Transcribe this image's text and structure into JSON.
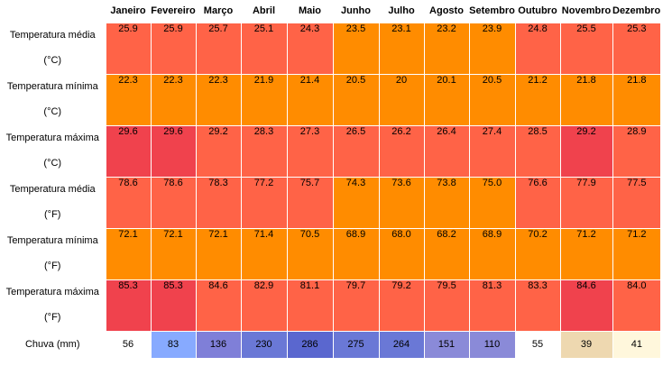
{
  "chart_data": {
    "type": "table",
    "columns": [
      "Janeiro",
      "Fevereiro",
      "Março",
      "Abril",
      "Maio",
      "Junho",
      "Julho",
      "Agosto",
      "Setembro",
      "Outubro",
      "Novembro",
      "Dezembro"
    ],
    "rows": [
      {
        "label": [
          "Temperatura média",
          "(°C)"
        ],
        "values": [
          "25.9",
          "25.9",
          "25.7",
          "25.1",
          "24.3",
          "23.5",
          "23.1",
          "23.2",
          "23.9",
          "24.8",
          "25.5",
          "25.3"
        ],
        "colors": [
          "#ff6347",
          "#ff6347",
          "#ff6347",
          "#ff6347",
          "#ff6347",
          "#ff8c00",
          "#ff8c00",
          "#ff8c00",
          "#ff8c00",
          "#ff6347",
          "#ff6347",
          "#ff6347"
        ]
      },
      {
        "label": [
          "Temperatura mínima",
          "(°C)"
        ],
        "values": [
          "22.3",
          "22.3",
          "22.3",
          "21.9",
          "21.4",
          "20.5",
          "20",
          "20.1",
          "20.5",
          "21.2",
          "21.8",
          "21.8"
        ],
        "colors": [
          "#ff8c00",
          "#ff8c00",
          "#ff8c00",
          "#ff8c00",
          "#ff8c00",
          "#ff8c00",
          "#ff8c00",
          "#ff8c00",
          "#ff8c00",
          "#ff8c00",
          "#ff8c00",
          "#ff8c00"
        ]
      },
      {
        "label": [
          "Temperatura máxima",
          "(°C)"
        ],
        "values": [
          "29.6",
          "29.6",
          "29.2",
          "28.3",
          "27.3",
          "26.5",
          "26.2",
          "26.4",
          "27.4",
          "28.5",
          "29.2",
          "28.9"
        ],
        "colors": [
          "#f0424d",
          "#f0424d",
          "#ff6347",
          "#ff6347",
          "#ff6347",
          "#ff6347",
          "#ff6347",
          "#ff6347",
          "#ff6347",
          "#ff6347",
          "#f0424d",
          "#ff6347"
        ]
      },
      {
        "label": [
          "Temperatura média",
          "(°F)"
        ],
        "values": [
          "78.6",
          "78.6",
          "78.3",
          "77.2",
          "75.7",
          "74.3",
          "73.6",
          "73.8",
          "75.0",
          "76.6",
          "77.9",
          "77.5"
        ],
        "colors": [
          "#ff6347",
          "#ff6347",
          "#ff6347",
          "#ff6347",
          "#ff6347",
          "#ff8c00",
          "#ff8c00",
          "#ff8c00",
          "#ff8c00",
          "#ff6347",
          "#ff6347",
          "#ff6347"
        ]
      },
      {
        "label": [
          "Temperatura mínima",
          "(°F)"
        ],
        "values": [
          "72.1",
          "72.1",
          "72.1",
          "71.4",
          "70.5",
          "68.9",
          "68.0",
          "68.2",
          "68.9",
          "70.2",
          "71.2",
          "71.2"
        ],
        "colors": [
          "#ff8c00",
          "#ff8c00",
          "#ff8c00",
          "#ff8c00",
          "#ff8c00",
          "#ff8c00",
          "#ff8c00",
          "#ff8c00",
          "#ff8c00",
          "#ff8c00",
          "#ff8c00",
          "#ff8c00"
        ]
      },
      {
        "label": [
          "Temperatura máxima",
          "(°F)"
        ],
        "values": [
          "85.3",
          "85.3",
          "84.6",
          "82.9",
          "81.1",
          "79.7",
          "79.2",
          "79.5",
          "81.3",
          "83.3",
          "84.6",
          "84.0"
        ],
        "colors": [
          "#f0424d",
          "#f0424d",
          "#ff6347",
          "#ff6347",
          "#ff6347",
          "#ff6347",
          "#ff6347",
          "#ff6347",
          "#ff6347",
          "#ff6347",
          "#f0424d",
          "#ff6347"
        ]
      }
    ],
    "rain": {
      "label": "Chuva (mm)",
      "values": [
        "56",
        "83",
        "136",
        "230",
        "286",
        "275",
        "264",
        "151",
        "110",
        "55",
        "39",
        "41"
      ],
      "colors": [
        "#ffffff",
        "#87aaff",
        "#7f7fd8",
        "#6a78d6",
        "#5a67cf",
        "#6a78d6",
        "#6a78d6",
        "#8a8ad8",
        "#8a8ad8",
        "#ffffff",
        "#eed8b0",
        "#fff7dc"
      ]
    }
  }
}
